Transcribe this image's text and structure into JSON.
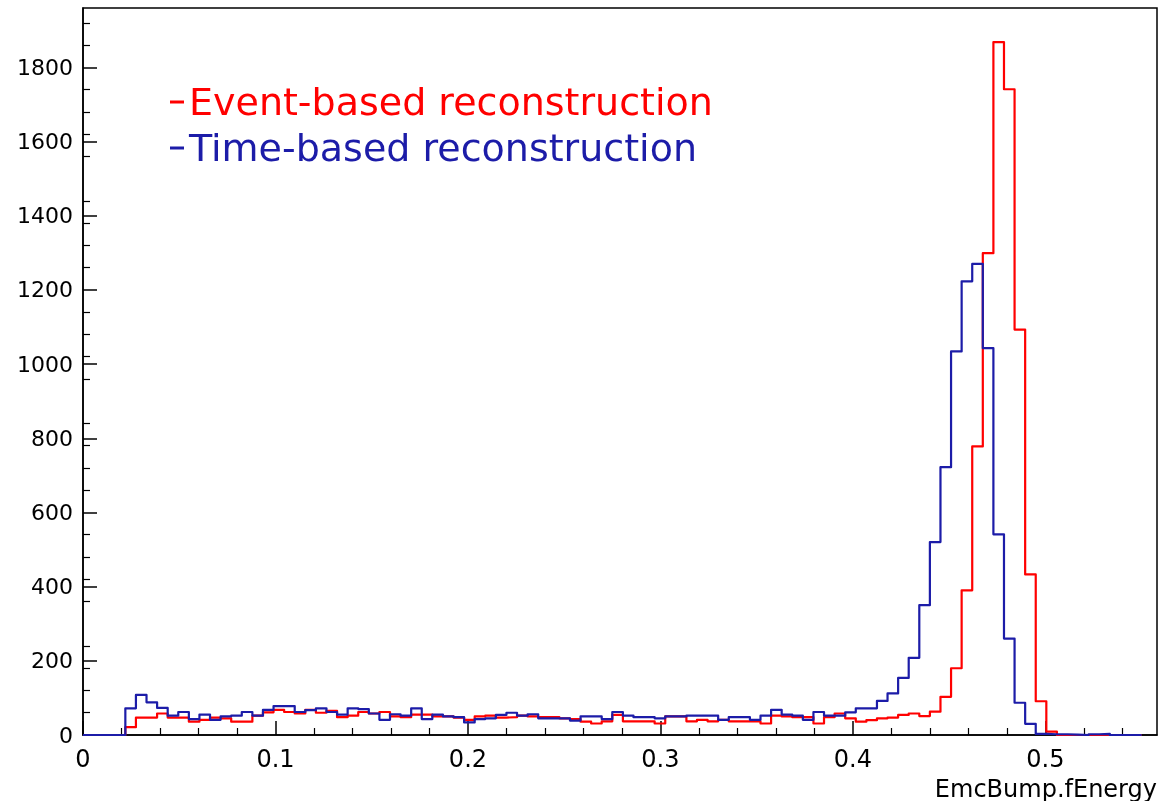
{
  "chart_data": {
    "type": "histogram",
    "xlabel": "EmcBump.fEnergy",
    "bins": [
      0,
      0.0055,
      0.011,
      0.0165,
      0.022,
      0.0275,
      0.033,
      0.0385,
      0.044,
      0.0495,
      0.055,
      0.0605,
      0.066,
      0.0715,
      0.077,
      0.0825,
      0.088,
      0.0935,
      0.099,
      0.1045,
      0.11,
      0.1155,
      0.121,
      0.1265,
      0.132,
      0.1375,
      0.143,
      0.1485,
      0.154,
      0.1595,
      0.165,
      0.1705,
      0.176,
      0.1815,
      0.187,
      0.1925,
      0.198,
      0.2035,
      0.209,
      0.2145,
      0.22,
      0.2255,
      0.231,
      0.2365,
      0.242,
      0.2475,
      0.253,
      0.2585,
      0.264,
      0.2695,
      0.275,
      0.2805,
      0.286,
      0.2915,
      0.297,
      0.3025,
      0.308,
      0.3135,
      0.319,
      0.3245,
      0.33,
      0.3355,
      0.341,
      0.3465,
      0.352,
      0.3575,
      0.363,
      0.3685,
      0.374,
      0.3795,
      0.385,
      0.3905,
      0.396,
      0.4015,
      0.407,
      0.4125,
      0.418,
      0.4235,
      0.429,
      0.4345,
      0.44,
      0.4455,
      0.451,
      0.4565,
      0.462,
      0.4675,
      0.473,
      0.4785,
      0.484,
      0.4895,
      0.495,
      0.5005,
      0.506,
      0.5115,
      0.517,
      0.5225,
      0.528,
      0.5335,
      0.539,
      0.5445,
      0.55
    ],
    "series": [
      {
        "name": "Event-based reconstruction",
        "color": "#ff0000",
        "values": [
          0,
          0,
          0,
          0,
          21,
          47,
          47,
          58,
          47,
          47,
          36,
          41,
          47,
          45,
          36,
          36,
          52,
          61,
          68,
          62,
          58,
          68,
          60,
          65,
          48,
          52,
          62,
          58,
          62,
          50,
          48,
          55,
          55,
          50,
          50,
          47,
          41,
          50,
          52,
          47,
          48,
          52,
          50,
          48,
          48,
          45,
          43,
          36,
          31,
          37,
          54,
          37,
          37,
          37,
          31,
          50,
          50,
          37,
          41,
          37,
          41,
          37,
          37,
          37,
          31,
          52,
          50,
          48,
          48,
          31,
          48,
          58,
          45,
          36,
          40,
          45,
          47,
          54,
          58,
          51,
          63,
          103,
          180,
          390,
          778,
          1299,
          1868,
          1741,
          1093,
          433,
          91,
          9,
          0,
          0,
          0,
          0,
          0,
          0,
          0,
          0
        ]
      },
      {
        "name": "Time-based reconstruction",
        "color": "#1c1ca8",
        "values": [
          0,
          0,
          0,
          0,
          72,
          108,
          88,
          73,
          52,
          62,
          43,
          55,
          41,
          50,
          52,
          62,
          52,
          68,
          78,
          78,
          62,
          67,
          72,
          62,
          55,
          72,
          70,
          58,
          41,
          56,
          52,
          72,
          43,
          55,
          50,
          48,
          34,
          43,
          45,
          54,
          60,
          52,
          56,
          45,
          45,
          45,
          39,
          50,
          50,
          43,
          62,
          52,
          48,
          48,
          45,
          50,
          50,
          52,
          52,
          52,
          41,
          48,
          48,
          41,
          52,
          68,
          55,
          52,
          41,
          62,
          52,
          52,
          61,
          72,
          72,
          92,
          112,
          154,
          208,
          350,
          520,
          722,
          1034,
          1223,
          1270,
          1043,
          541,
          260,
          87,
          30,
          3,
          2,
          2,
          1,
          0,
          2,
          3,
          0,
          0,
          0
        ]
      }
    ],
    "xlim": [
      0,
      0.558
    ],
    "xticks": [
      0,
      0.1,
      0.2,
      0.3,
      0.4,
      0.5
    ],
    "ylim": [
      0,
      1960
    ],
    "yticks": [
      0,
      200,
      400,
      600,
      800,
      1000,
      1200,
      1400,
      1600,
      1800
    ],
    "legend": "top left"
  }
}
